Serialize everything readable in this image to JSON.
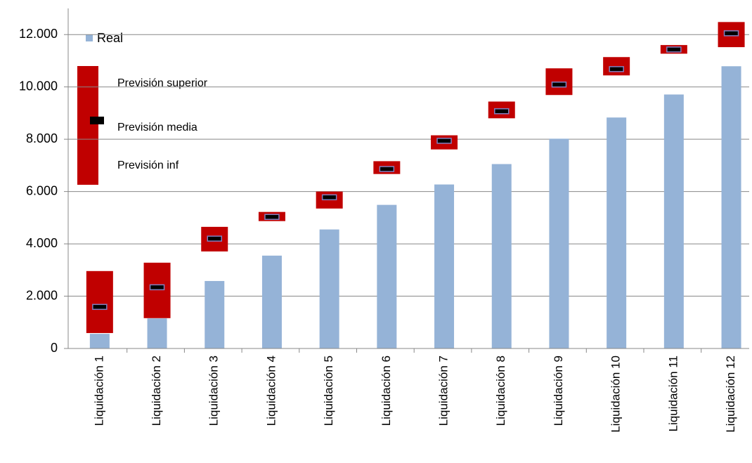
{
  "chart_data": {
    "type": "bar-range",
    "categories": [
      "Liquidación 1",
      "Liquidación 2",
      "Liquidación 3",
      "Liquidación 4",
      "Liquidación 5",
      "Liquidación 6",
      "Liquidación 7",
      "Liquidación 8",
      "Liquidación 9",
      "Liquidación 10",
      "Liquidación 11",
      "Liquidación 12"
    ],
    "series": [
      {
        "name": "Real",
        "color": "#95b3d7",
        "values": [
          560,
          1150,
          2580,
          3550,
          4550,
          5490,
          6270,
          7050,
          8020,
          8830,
          9710,
          10790
        ]
      },
      {
        "name": "Previsión superior",
        "color": "#c00000",
        "values": [
          2960,
          3280,
          4650,
          5220,
          6000,
          7160,
          8150,
          9440,
          10710,
          11140,
          11600,
          12480
        ]
      },
      {
        "name": "Previsión media",
        "color": "#000000",
        "values": [
          1590,
          2340,
          4200,
          5030,
          5780,
          6860,
          7940,
          9070,
          10090,
          10680,
          11430,
          12050
        ]
      },
      {
        "name": "Previsión inf",
        "color": "#c00000",
        "values": [
          590,
          1160,
          3710,
          4870,
          5350,
          6670,
          7610,
          8800,
          9690,
          10440,
          11270,
          11520
        ]
      }
    ],
    "ylim": [
      0,
      13000
    ],
    "yticks": [
      0,
      {
        "value": 2000,
        "label": "2.000"
      },
      {
        "value": 4000,
        "label": "4.000"
      },
      {
        "value": 6000,
        "label": "6.000"
      },
      {
        "value": 8000,
        "label": "8.000"
      },
      {
        "value": 10000,
        "label": "10.000"
      },
      {
        "value": 12000,
        "label": "12.000"
      }
    ],
    "grid": true
  }
}
